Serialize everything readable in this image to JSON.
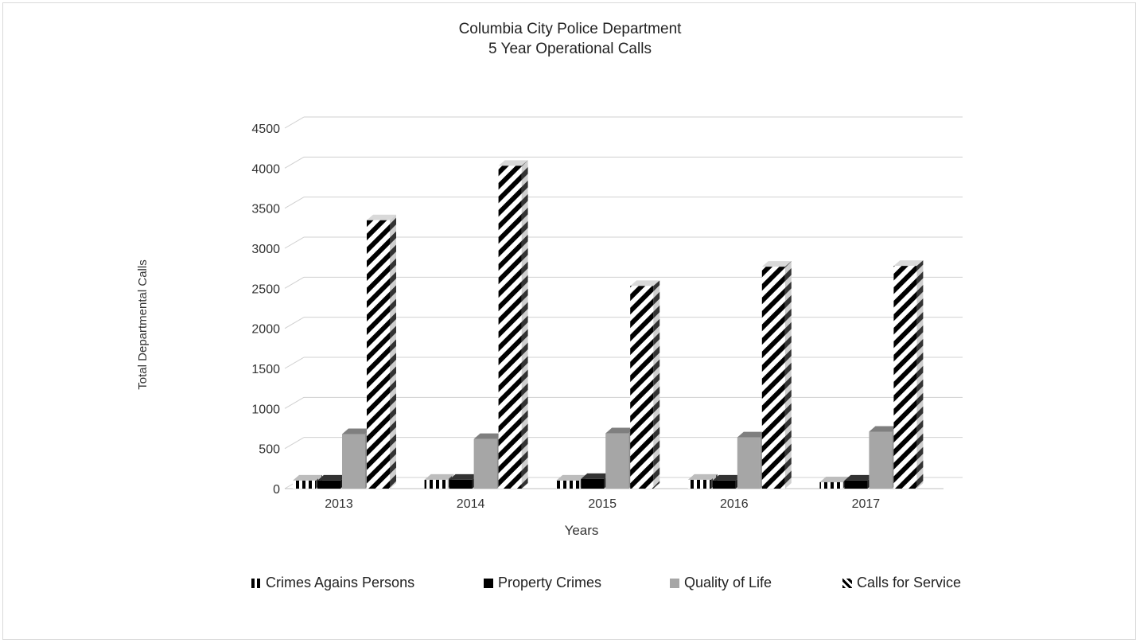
{
  "chart_data": {
    "type": "bar",
    "title": "Columbia City Police Department",
    "subtitle": "5 Year Operational Calls",
    "xlabel": "Years",
    "ylabel": "Total Departmental Calls",
    "categories": [
      "2013",
      "2014",
      "2015",
      "2016",
      "2017"
    ],
    "ylim": [
      0,
      4500
    ],
    "yticks": [
      0,
      500,
      1000,
      1500,
      2000,
      2500,
      3000,
      3500,
      4000,
      4500
    ],
    "grid": true,
    "legend_position": "bottom",
    "series": [
      {
        "name": "Crimes Agains Persons",
        "values": [
          100,
          110,
          100,
          110,
          80
        ],
        "pattern": "vertical-stripes",
        "color": "#000000"
      },
      {
        "name": "Property Crimes",
        "values": [
          100,
          110,
          120,
          100,
          100
        ],
        "pattern": "solid",
        "color": "#000000"
      },
      {
        "name": "Quality of Life",
        "values": [
          680,
          620,
          690,
          640,
          710
        ],
        "pattern": "solid",
        "color": "#a6a6a6"
      },
      {
        "name": "Calls for Service",
        "values": [
          3350,
          4030,
          2530,
          2770,
          2780
        ],
        "pattern": "diagonal-stripes",
        "color": "#000000"
      }
    ]
  }
}
